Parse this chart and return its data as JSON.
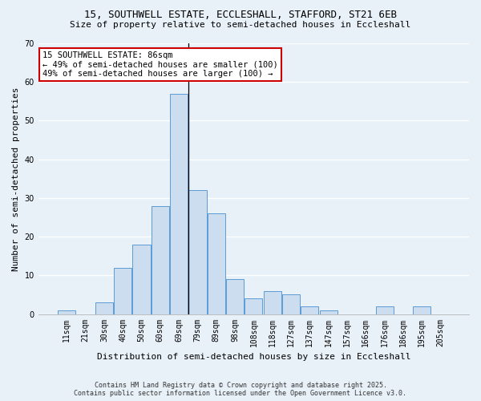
{
  "title_line1": "15, SOUTHWELL ESTATE, ECCLESHALL, STAFFORD, ST21 6EB",
  "title_line2": "Size of property relative to semi-detached houses in Eccleshall",
  "xlabel": "Distribution of semi-detached houses by size in Eccleshall",
  "ylabel": "Number of semi-detached properties",
  "categories": [
    "11sqm",
    "21sqm",
    "30sqm",
    "40sqm",
    "50sqm",
    "60sqm",
    "69sqm",
    "79sqm",
    "89sqm",
    "98sqm",
    "108sqm",
    "118sqm",
    "127sqm",
    "137sqm",
    "147sqm",
    "157sqm",
    "166sqm",
    "176sqm",
    "186sqm",
    "195sqm",
    "205sqm"
  ],
  "values": [
    1,
    0,
    3,
    12,
    18,
    28,
    57,
    32,
    26,
    9,
    4,
    6,
    5,
    2,
    1,
    0,
    0,
    2,
    0,
    2,
    0
  ],
  "bar_color": "#ccddf0",
  "bar_edge_color": "#5b9bd5",
  "property_label": "15 SOUTHWELL ESTATE: 86sqm",
  "pct_smaller": 49,
  "pct_larger": 49,
  "count_smaller": 100,
  "count_larger": 100,
  "vline_index": 7,
  "ylim": [
    0,
    70
  ],
  "yticks": [
    0,
    10,
    20,
    30,
    40,
    50,
    60,
    70
  ],
  "bg_color": "#e8f0f8",
  "grid_color": "#ffffff",
  "footer_line1": "Contains HM Land Registry data © Crown copyright and database right 2025.",
  "footer_line2": "Contains public sector information licensed under the Open Government Licence v3.0.",
  "annotation_box_color": "#ffffff",
  "annotation_box_edge": "#cc0000",
  "title_fontsize": 9,
  "subtitle_fontsize": 8,
  "ylabel_fontsize": 8,
  "xlabel_fontsize": 8,
  "tick_fontsize": 7,
  "footer_fontsize": 6,
  "ann_fontsize": 7.5
}
